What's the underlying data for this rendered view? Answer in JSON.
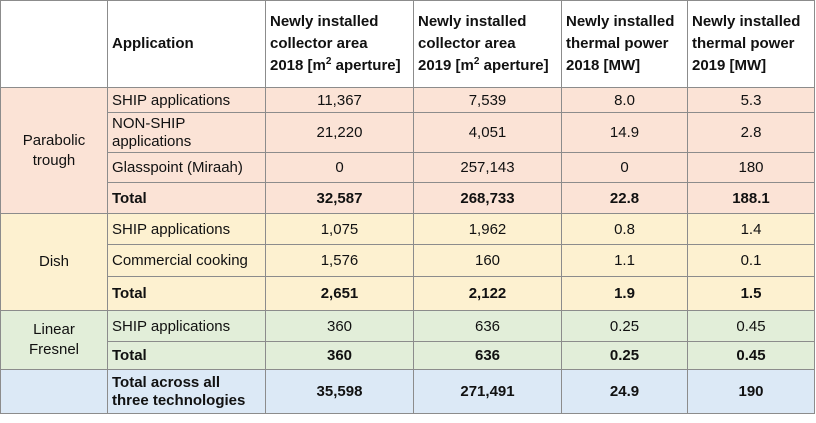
{
  "header": {
    "application": "Application",
    "col1": {
      "line1": "Newly installed",
      "line2": "collector area",
      "line3_pre": "2018 [m",
      "sup": "2",
      "line3_post": " aperture]"
    },
    "col2": {
      "line1": "Newly installed",
      "line2": "collector area",
      "line3_pre": "2019 [m",
      "sup": "2",
      "line3_post": " aperture]"
    },
    "col3": {
      "line1": "Newly installed",
      "line2": "thermal power",
      "line3": "2018 [MW]"
    },
    "col4": {
      "line1": "Newly installed",
      "line2": "thermal power",
      "line3": "2019 [MW]"
    }
  },
  "groups": {
    "parabolic": {
      "label_line1": "Parabolic",
      "label_line2": "trough",
      "rows": [
        {
          "app": "SHIP applications",
          "a2018": "11,367",
          "a2019": "7,539",
          "p2018": "8.0",
          "p2019": "5.3"
        },
        {
          "app_line1": "NON-SHIP",
          "app_line2": "applications",
          "a2018": "21,220",
          "a2019": "4,051",
          "p2018": "14.9",
          "p2019": "2.8"
        },
        {
          "app": "Glasspoint (Miraah)",
          "a2018": "0",
          "a2019": "257,143",
          "p2018": "0",
          "p2019": "180"
        }
      ],
      "total": {
        "app": "Total",
        "a2018": "32,587",
        "a2019": "268,733",
        "p2018": "22.8",
        "p2019": "188.1"
      }
    },
    "dish": {
      "label": "Dish",
      "rows": [
        {
          "app": "SHIP applications",
          "a2018": "1,075",
          "a2019": "1,962",
          "p2018": "0.8",
          "p2019": "1.4"
        },
        {
          "app": "Commercial cooking",
          "a2018": "1,576",
          "a2019": "160",
          "p2018": "1.1",
          "p2019": "0.1"
        }
      ],
      "total": {
        "app": "Total",
        "a2018": "2,651",
        "a2019": "2,122",
        "p2018": "1.9",
        "p2019": "1.5"
      }
    },
    "linear": {
      "label_line1": "Linear",
      "label_line2": "Fresnel",
      "rows": [
        {
          "app": "SHIP applications",
          "a2018": "360",
          "a2019": "636",
          "p2018": "0.25",
          "p2019": "0.45"
        }
      ],
      "total": {
        "app": "Total",
        "a2018": "360",
        "a2019": "636",
        "p2018": "0.25",
        "p2019": "0.45"
      }
    }
  },
  "grand_total": {
    "label_line1": "Total across all",
    "label_line2": "three technologies",
    "a2018": "35,598",
    "a2019": "271,491",
    "p2018": "24.9",
    "p2019": "190"
  },
  "colors": {
    "parabolic": "#fbe3d6",
    "dish": "#fdf1d0",
    "linear": "#e2eed9",
    "grand_total": "#dce9f6",
    "border": "#8c8c8c"
  }
}
